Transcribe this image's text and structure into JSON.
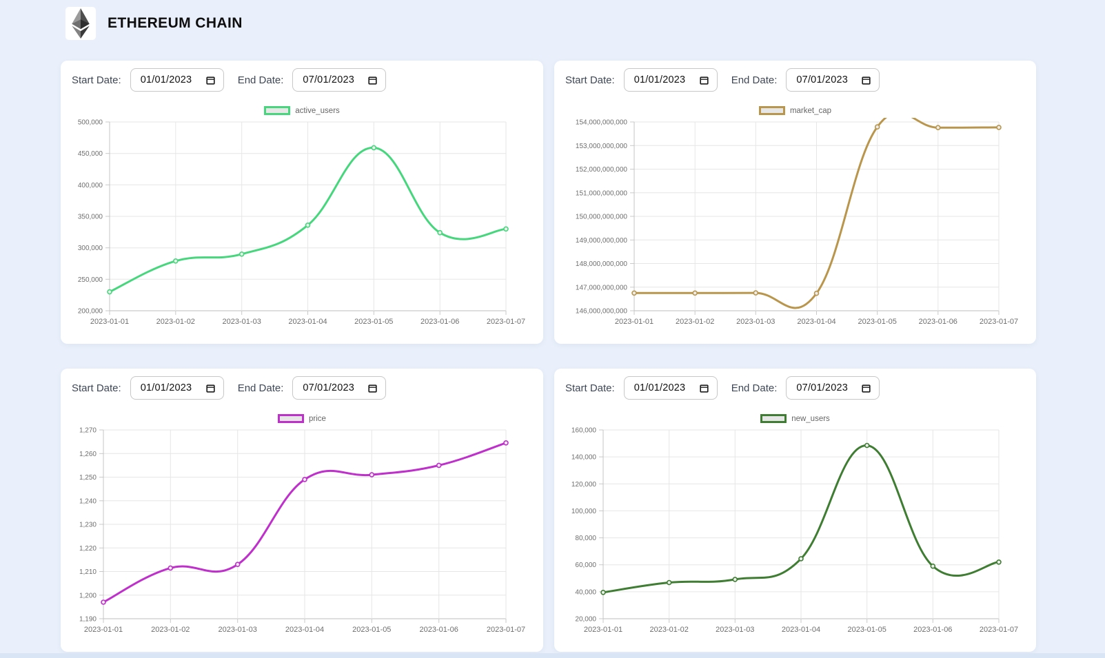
{
  "header": {
    "title": "ETHEREUM CHAIN",
    "logo": "ethereum-logo"
  },
  "controls": {
    "start_label": "Start Date:",
    "end_label": "End Date:",
    "start_value": "01/01/2023",
    "end_value": "07/01/2023"
  },
  "colors": {
    "page_bg": "#e9f0fb",
    "card_bg": "#ffffff",
    "grid_line": "#e6e6e6",
    "axis_line": "#bdbdbd",
    "tick_text": "#6e6e6e",
    "legend_text": "#666666",
    "legend_fill": "#e6e6e6",
    "active_users_line": "#46d77d",
    "market_cap_line": "#b9964c",
    "price_line": "#bf2fcb",
    "new_users_line": "#3e7d32"
  },
  "chart_data": [
    {
      "type": "line",
      "name": "active_users",
      "legend": "active_users",
      "color": "#46d77d",
      "legend_position": "top",
      "grid": true,
      "x": [
        "2023-01-01",
        "2023-01-02",
        "2023-01-03",
        "2023-01-04",
        "2023-01-05",
        "2023-01-06",
        "2023-01-07"
      ],
      "values": [
        230000,
        279000,
        290000,
        336000,
        459000,
        324000,
        330000
      ],
      "ylim": [
        200000,
        500000
      ],
      "ystep": 50000,
      "xlabel": "",
      "ylabel": ""
    },
    {
      "type": "line",
      "name": "market_cap",
      "legend": "market_cap",
      "color": "#b9964c",
      "legend_position": "top",
      "grid": true,
      "x": [
        "2023-01-01",
        "2023-01-02",
        "2023-01-03",
        "2023-01-04",
        "2023-01-05",
        "2023-01-06",
        "2023-01-07"
      ],
      "values": [
        146750000000,
        146750000000,
        146755000000,
        146740000000,
        153790000000,
        153760000000,
        153770000000
      ],
      "ylim": [
        146000000000,
        154000000000
      ],
      "ystep": 1000000000,
      "xlabel": "",
      "ylabel": ""
    },
    {
      "type": "line",
      "name": "price",
      "legend": "price",
      "color": "#bf2fcb",
      "legend_position": "top",
      "grid": true,
      "x": [
        "2023-01-01",
        "2023-01-02",
        "2023-01-03",
        "2023-01-04",
        "2023-01-05",
        "2023-01-06",
        "2023-01-07"
      ],
      "values": [
        1197,
        1211.5,
        1213,
        1249,
        1251,
        1255,
        1264.5
      ],
      "ylim": [
        1190,
        1270
      ],
      "ystep": 10,
      "xlabel": "",
      "ylabel": ""
    },
    {
      "type": "line",
      "name": "new_users",
      "legend": "new_users",
      "color": "#3e7d32",
      "legend_position": "top",
      "grid": true,
      "x": [
        "2023-01-01",
        "2023-01-02",
        "2023-01-03",
        "2023-01-04",
        "2023-01-05",
        "2023-01-06",
        "2023-01-07"
      ],
      "values": [
        39500,
        46800,
        49200,
        64500,
        148500,
        59000,
        62000
      ],
      "ylim": [
        20000,
        160000
      ],
      "ystep": 20000,
      "xlabel": "",
      "ylabel": ""
    }
  ]
}
